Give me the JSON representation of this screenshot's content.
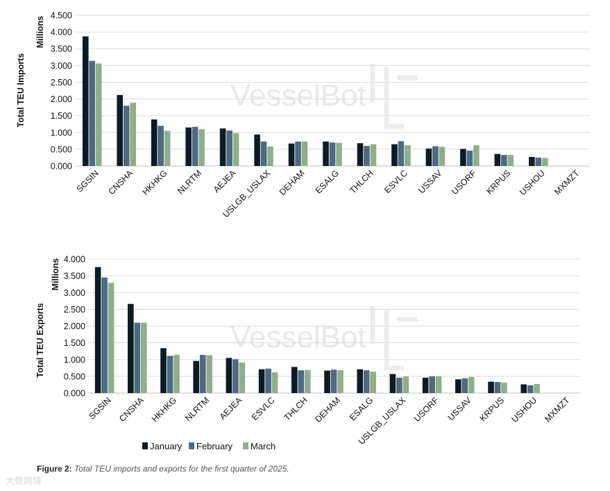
{
  "watermark": "VesselBot",
  "caption": {
    "label": "Figure 2:",
    "text": "Total TEU imports and exports for the first quarter of 2025."
  },
  "corner_mark": "大数跨境",
  "legend": [
    "January",
    "February",
    "March"
  ],
  "colors": [
    "#0d1b25",
    "#4d6a82",
    "#8fae8c"
  ],
  "chart_data": [
    {
      "type": "bar",
      "title": "",
      "xlabel": "",
      "ylabel": "Total TEU Imports",
      "units_label": "Millions",
      "ylim": [
        0,
        4.5
      ],
      "yticks": [
        "0.000",
        "0.500",
        "1.000",
        "1.500",
        "2.000",
        "2.500",
        "3.000",
        "3.500",
        "4.000",
        "4.500"
      ],
      "grid": true,
      "categories": [
        "SGSIN",
        "CNSHA",
        "HKHKG",
        "NLRTM",
        "AEJEA",
        "USLGB_USLAX",
        "DEHAM",
        "ESALG",
        "THLCH",
        "ESVLC",
        "USSAV",
        "USORF",
        "KRPUS",
        "USHOU",
        "MXMZT"
      ],
      "series": [
        {
          "name": "January",
          "values": [
            3.87,
            2.12,
            1.39,
            1.15,
            1.12,
            0.94,
            0.67,
            0.73,
            0.68,
            0.65,
            0.52,
            0.51,
            0.36,
            0.27,
            0
          ]
        },
        {
          "name": "February",
          "values": [
            3.14,
            1.8,
            1.2,
            1.17,
            1.06,
            0.73,
            0.73,
            0.7,
            0.6,
            0.74,
            0.59,
            0.46,
            0.33,
            0.25,
            0
          ]
        },
        {
          "name": "March",
          "values": [
            3.06,
            1.89,
            1.05,
            1.1,
            0.98,
            0.58,
            0.73,
            0.69,
            0.65,
            0.62,
            0.57,
            0.62,
            0.33,
            0.24,
            0
          ]
        }
      ]
    },
    {
      "type": "bar",
      "title": "",
      "xlabel": "",
      "ylabel": "Total TEU Exports",
      "units_label": "Millions",
      "ylim": [
        0,
        4.0
      ],
      "yticks": [
        "0.000",
        "0.500",
        "1.000",
        "1.500",
        "2.000",
        "2.500",
        "3.000",
        "3.500",
        "4.000"
      ],
      "grid": true,
      "legend": "bottom",
      "categories": [
        "SGSIN",
        "CNSHA",
        "HKHKG",
        "NLRTM",
        "AEJEA",
        "ESVLC",
        "THLCH",
        "DEHAM",
        "ESALG",
        "USLGB_USLAX",
        "USORF",
        "USSAV",
        "KRPUS",
        "USHOU",
        "MXMZT"
      ],
      "series": [
        {
          "name": "January",
          "values": [
            3.76,
            2.66,
            1.34,
            0.96,
            1.05,
            0.71,
            0.78,
            0.67,
            0.71,
            0.57,
            0.46,
            0.41,
            0.34,
            0.26,
            0
          ]
        },
        {
          "name": "February",
          "values": [
            3.45,
            2.1,
            1.11,
            1.14,
            1.01,
            0.73,
            0.68,
            0.7,
            0.68,
            0.46,
            0.5,
            0.44,
            0.33,
            0.23,
            0
          ]
        },
        {
          "name": "March",
          "values": [
            3.29,
            2.1,
            1.14,
            1.13,
            0.91,
            0.62,
            0.69,
            0.68,
            0.64,
            0.5,
            0.5,
            0.48,
            0.31,
            0.27,
            0
          ]
        }
      ]
    }
  ]
}
